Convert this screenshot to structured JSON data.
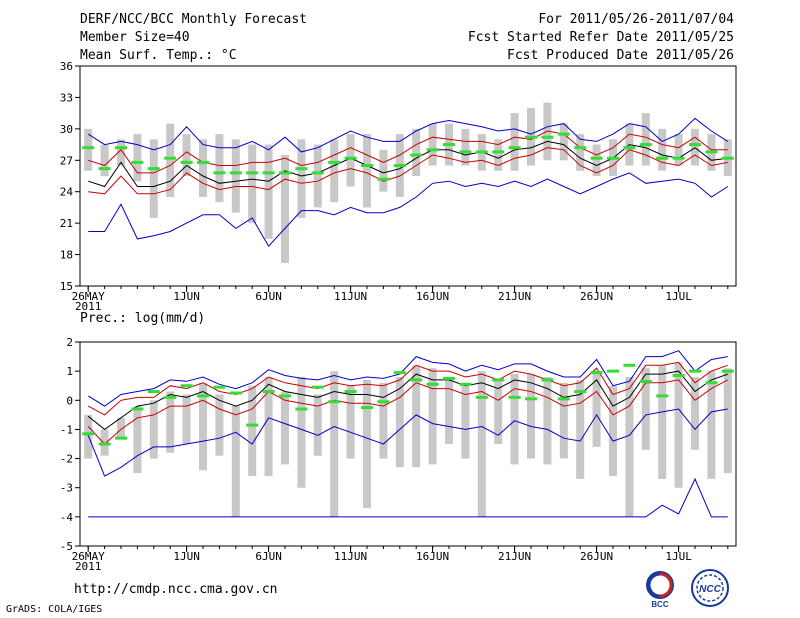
{
  "header": {
    "title": "DERF/NCC/BCC Monthly Forecast",
    "member_size": "Member Size=40",
    "variable_top": "Mean Surf. Temp.: °C",
    "period": "For 2011/05/26-2011/07/04",
    "fcst_started": "Fcst Started Refer Date 2011/05/25",
    "fcst_produced": "Fcst Produced Date 2011/05/26"
  },
  "footer": {
    "url": "http://cmdp.ncc.cma.gov.cn",
    "grads": "GrADS: COLA/IGES",
    "logo_left": "BCC",
    "logo_right": "NCC"
  },
  "colors": {
    "envelope": "#0000cc",
    "spread": "#cc0000",
    "mean": "#000000",
    "box": "#c8c8c8",
    "observed": "#33dd33"
  },
  "chart_data": [
    {
      "type": "line",
      "title": "Mean Surf. Temp.: °C",
      "ylim": [
        15,
        36
      ],
      "yticks": [
        15,
        18,
        21,
        24,
        27,
        30,
        33,
        36
      ],
      "xtick_labels": [
        "26MAY",
        "1JUN",
        "6JUN",
        "11JUN",
        "16JUN",
        "21JUN",
        "26JUN",
        "1JUL"
      ],
      "xtick_day_index": [
        0,
        6,
        11,
        16,
        21,
        26,
        31,
        36
      ],
      "year_label": "2011",
      "days": 40,
      "series": [
        {
          "name": "max",
          "values": [
            29.5,
            28.5,
            28.8,
            28.5,
            28.0,
            28.5,
            30.2,
            28.5,
            28.2,
            28.2,
            28.8,
            28.0,
            29.2,
            27.8,
            28.2,
            29.0,
            29.8,
            29.2,
            28.8,
            28.8,
            29.8,
            30.5,
            30.8,
            30.5,
            30.2,
            29.8,
            30.0,
            29.5,
            30.2,
            30.5,
            29.0,
            28.8,
            29.5,
            30.5,
            30.2,
            28.8,
            29.5,
            31.0,
            29.8,
            28.8
          ]
        },
        {
          "name": "upper",
          "values": [
            27.0,
            26.5,
            28.0,
            25.8,
            25.8,
            26.5,
            27.8,
            26.8,
            26.5,
            26.5,
            26.8,
            26.8,
            27.2,
            26.5,
            26.8,
            27.5,
            28.2,
            27.5,
            26.8,
            27.5,
            28.5,
            29.2,
            29.0,
            28.8,
            28.8,
            28.5,
            29.2,
            29.0,
            29.8,
            29.5,
            28.2,
            27.5,
            28.2,
            29.5,
            29.2,
            28.5,
            28.2,
            29.2,
            28.0,
            28.0
          ]
        },
        {
          "name": "mean",
          "values": [
            25.0,
            24.5,
            26.8,
            24.5,
            24.5,
            25.0,
            26.5,
            25.5,
            24.8,
            25.0,
            25.2,
            25.0,
            26.0,
            25.5,
            25.8,
            26.5,
            27.2,
            26.5,
            25.8,
            26.2,
            27.2,
            28.0,
            28.0,
            27.5,
            27.8,
            27.2,
            28.0,
            28.2,
            28.8,
            28.5,
            27.2,
            26.5,
            27.2,
            28.5,
            28.2,
            27.5,
            27.2,
            28.2,
            27.0,
            27.2
          ]
        },
        {
          "name": "lower",
          "values": [
            24.0,
            23.8,
            25.5,
            23.8,
            23.8,
            24.2,
            25.8,
            24.8,
            24.2,
            24.5,
            24.5,
            24.2,
            25.2,
            24.8,
            25.0,
            25.8,
            26.2,
            25.8,
            25.0,
            25.5,
            26.5,
            27.5,
            27.2,
            26.8,
            27.0,
            26.5,
            27.2,
            27.5,
            28.2,
            28.0,
            26.5,
            25.8,
            26.5,
            28.0,
            27.5,
            26.8,
            26.5,
            27.5,
            26.5,
            26.8
          ]
        },
        {
          "name": "min",
          "values": [
            20.2,
            20.2,
            22.8,
            19.5,
            19.8,
            20.2,
            21.0,
            21.8,
            21.8,
            20.5,
            21.5,
            18.8,
            20.5,
            22.2,
            22.2,
            21.8,
            22.5,
            22.0,
            22.0,
            22.5,
            23.5,
            24.8,
            25.0,
            24.5,
            24.8,
            24.5,
            25.0,
            24.5,
            25.2,
            24.5,
            23.8,
            24.5,
            25.2,
            25.8,
            24.8,
            25.0,
            25.2,
            24.8,
            23.5,
            24.5
          ]
        }
      ],
      "boxes": {
        "low": [
          26.0,
          25.5,
          26.5,
          25.0,
          21.5,
          23.5,
          25.5,
          23.5,
          23.0,
          22.0,
          21.0,
          19.5,
          17.2,
          21.5,
          22.5,
          23.0,
          24.5,
          22.5,
          24.0,
          23.5,
          25.5,
          26.5,
          26.5,
          26.5,
          26.0,
          26.0,
          26.0,
          26.5,
          27.0,
          27.0,
          26.0,
          25.5,
          25.5,
          26.5,
          26.5,
          26.0,
          26.5,
          26.5,
          26.0,
          25.5
        ],
        "high": [
          30.0,
          28.5,
          29.0,
          29.5,
          29.0,
          30.5,
          29.5,
          29.0,
          29.5,
          29.0,
          28.5,
          28.5,
          27.5,
          29.0,
          28.5,
          29.0,
          29.5,
          29.5,
          28.0,
          29.5,
          30.0,
          30.5,
          30.5,
          30.0,
          29.5,
          29.0,
          31.5,
          32.0,
          32.5,
          30.5,
          29.5,
          28.5,
          29.0,
          30.5,
          31.5,
          30.0,
          29.5,
          30.0,
          29.5,
          29.0
        ]
      },
      "observed": [
        28.2,
        26.2,
        28.2,
        26.8,
        26.2,
        27.2,
        26.8,
        26.8,
        25.8,
        25.8,
        25.8,
        25.8,
        25.8,
        26.2,
        25.8,
        26.8,
        27.2,
        26.5,
        25.2,
        26.5,
        27.5,
        28.0,
        28.5,
        27.8,
        27.8,
        27.8,
        28.2,
        29.2,
        29.2,
        29.5,
        28.2,
        27.2,
        27.2,
        28.2,
        28.5,
        27.2,
        27.2,
        28.5,
        27.8,
        27.2
      ]
    },
    {
      "type": "line",
      "title": "Prec.: log(mm/d)",
      "ylim": [
        -5,
        2
      ],
      "yticks": [
        -5,
        -4,
        -3,
        -2,
        -1,
        0,
        1,
        2
      ],
      "xtick_labels": [
        "26MAY",
        "1JUN",
        "6JUN",
        "11JUN",
        "16JUN",
        "21JUN",
        "26JUN",
        "1JUL"
      ],
      "xtick_day_index": [
        0,
        6,
        11,
        16,
        21,
        26,
        31,
        36
      ],
      "year_label": "2011",
      "days": 40,
      "series": [
        {
          "name": "max",
          "values": [
            0.15,
            -0.2,
            0.2,
            0.3,
            0.4,
            0.7,
            0.65,
            0.8,
            0.55,
            0.4,
            0.6,
            1.05,
            0.85,
            0.75,
            0.7,
            0.85,
            0.7,
            0.8,
            0.75,
            0.9,
            1.5,
            1.3,
            1.25,
            1.0,
            1.2,
            1.05,
            1.25,
            1.25,
            1.0,
            0.8,
            0.8,
            1.4,
            0.5,
            0.65,
            1.5,
            1.5,
            1.7,
            1.0,
            1.4,
            1.5
          ]
        },
        {
          "name": "upper",
          "values": [
            -0.2,
            -0.5,
            0.0,
            0.1,
            0.1,
            0.5,
            0.4,
            0.6,
            0.3,
            0.2,
            0.4,
            0.8,
            0.6,
            0.5,
            0.4,
            0.6,
            0.5,
            0.55,
            0.5,
            0.7,
            1.2,
            1.0,
            1.0,
            0.8,
            0.9,
            0.7,
            1.0,
            0.9,
            0.7,
            0.5,
            0.6,
            1.1,
            0.2,
            0.4,
            1.2,
            1.2,
            1.3,
            0.6,
            1.0,
            1.2
          ]
        },
        {
          "name": "mean",
          "values": [
            -0.55,
            -1.0,
            -0.6,
            -0.2,
            -0.1,
            0.2,
            0.1,
            0.3,
            0.0,
            -0.2,
            0.0,
            0.55,
            0.3,
            0.2,
            0.1,
            0.3,
            0.2,
            0.2,
            0.1,
            0.4,
            0.9,
            0.7,
            0.7,
            0.5,
            0.6,
            0.4,
            0.7,
            0.6,
            0.4,
            0.1,
            0.2,
            0.7,
            -0.2,
            0.1,
            0.9,
            0.9,
            1.0,
            0.3,
            0.7,
            0.9
          ]
        },
        {
          "name": "lower",
          "values": [
            -0.9,
            -1.5,
            -1.0,
            -0.6,
            -0.5,
            -0.2,
            -0.2,
            0.0,
            -0.3,
            -0.5,
            -0.3,
            0.3,
            0.0,
            -0.1,
            -0.2,
            0.0,
            -0.1,
            -0.1,
            -0.2,
            0.1,
            0.6,
            0.4,
            0.4,
            0.2,
            0.3,
            0.0,
            0.4,
            0.3,
            0.1,
            -0.2,
            -0.1,
            0.3,
            -0.5,
            -0.2,
            0.6,
            0.6,
            0.7,
            0.0,
            0.4,
            0.7
          ]
        },
        {
          "name": "min",
          "values": [
            -1.2,
            -2.6,
            -2.3,
            -1.9,
            -1.6,
            -1.6,
            -1.5,
            -1.4,
            -1.3,
            -1.1,
            -1.5,
            -0.6,
            -0.8,
            -1.0,
            -1.2,
            -0.9,
            -1.1,
            -1.3,
            -1.5,
            -1.0,
            -0.5,
            -0.8,
            -0.9,
            -1.0,
            -0.9,
            -1.2,
            -0.7,
            -0.9,
            -1.0,
            -1.3,
            -1.4,
            -0.5,
            -1.4,
            -1.2,
            -0.5,
            -0.4,
            -0.3,
            -1.0,
            -0.4,
            -0.3
          ]
        },
        {
          "name": "floor",
          "values": [
            -4.0,
            -4.0,
            -4.0,
            -4.0,
            -4.0,
            -4.0,
            -4.0,
            -4.0,
            -4.0,
            -4.0,
            -4.0,
            -4.0,
            -4.0,
            -4.0,
            -4.0,
            -4.0,
            -4.0,
            -4.0,
            -4.0,
            -4.0,
            -4.0,
            -4.0,
            -4.0,
            -4.0,
            -4.0,
            -4.0,
            -4.0,
            -4.0,
            -4.0,
            -4.0,
            -4.0,
            -4.0,
            -4.0,
            -4.0,
            -4.0,
            -3.6,
            -3.9,
            -2.7,
            -4.0,
            -4.0
          ]
        }
      ],
      "boxes": {
        "low": [
          -2.0,
          -1.9,
          -1.3,
          -2.5,
          -2.0,
          -1.8,
          -1.5,
          -2.4,
          -1.9,
          -4.0,
          -2.6,
          -2.6,
          -2.2,
          -3.0,
          -1.9,
          -4.0,
          -2.0,
          -3.7,
          -2.0,
          -2.3,
          -2.3,
          -2.2,
          -1.5,
          -2.0,
          -4.0,
          -1.5,
          -2.2,
          -2.0,
          -2.2,
          -2.0,
          -2.7,
          -1.6,
          -2.6,
          -4.0,
          -1.7,
          -2.7,
          -3.0,
          -1.7,
          -2.7,
          -2.5
        ],
        "high": [
          -0.5,
          -1.0,
          -0.6,
          -0.2,
          0.0,
          0.3,
          0.2,
          0.6,
          0.2,
          -0.2,
          0.5,
          0.8,
          0.3,
          0.8,
          0.2,
          1.0,
          0.5,
          0.7,
          0.6,
          0.8,
          1.2,
          1.1,
          0.8,
          0.6,
          1.0,
          0.7,
          0.9,
          0.9,
          0.8,
          0.6,
          0.7,
          1.0,
          0.5,
          0.8,
          1.1,
          1.2,
          1.3,
          0.8,
          1.0,
          1.1
        ]
      },
      "observed": [
        -1.15,
        -1.5,
        -1.3,
        -0.3,
        0.3,
        0.1,
        0.5,
        0.15,
        0.45,
        0.25,
        -0.85,
        0.3,
        0.15,
        -0.3,
        0.45,
        -0.05,
        0.3,
        -0.25,
        -0.05,
        0.95,
        0.7,
        0.55,
        0.75,
        0.55,
        0.1,
        0.7,
        0.1,
        0.05,
        0.7,
        0.05,
        0.3,
        0.95,
        1.0,
        1.2,
        0.65,
        0.15,
        0.85,
        1.0,
        0.6,
        1.0
      ]
    }
  ]
}
